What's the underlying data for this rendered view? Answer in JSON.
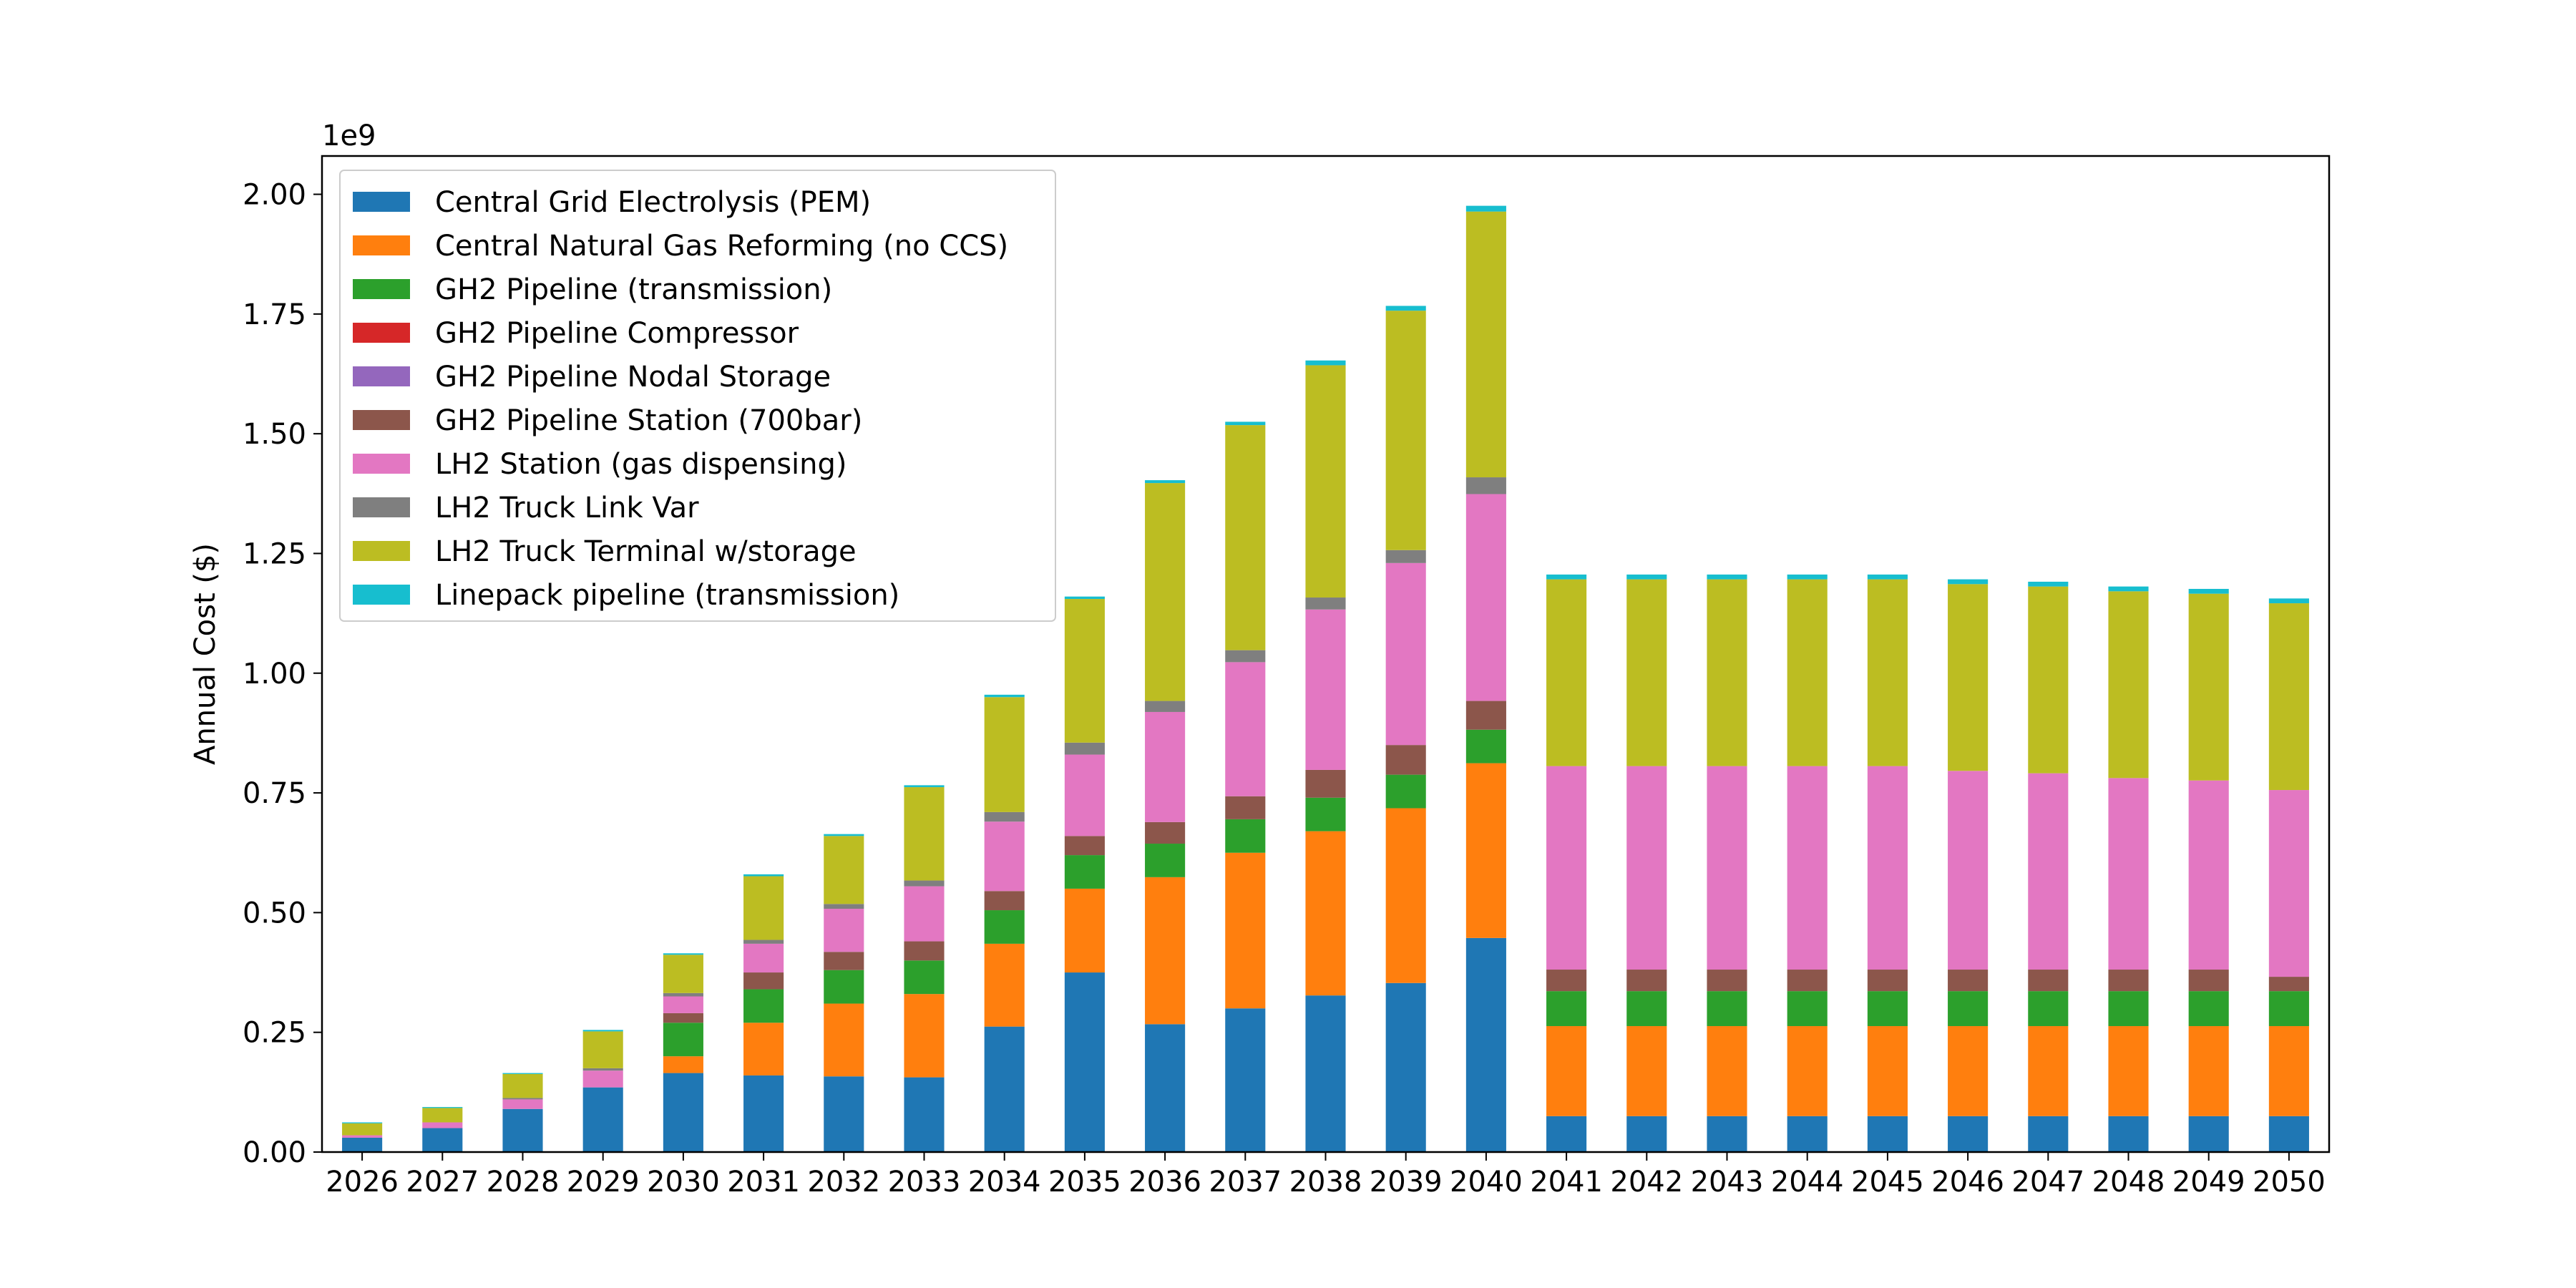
{
  "chart_data": {
    "type": "bar",
    "stacked": true,
    "title": "",
    "xlabel": "",
    "ylabel": "Annual Cost ($)",
    "y_offset_text": "1e9",
    "ylim": [
      0,
      2.08
    ],
    "yticks": [
      "0.00",
      "0.25",
      "0.50",
      "0.75",
      "1.00",
      "1.25",
      "1.50",
      "1.75",
      "2.00"
    ],
    "grid": false,
    "legend_position": "upper-left",
    "categories": [
      "2026",
      "2027",
      "2028",
      "2029",
      "2030",
      "2031",
      "2032",
      "2033",
      "2034",
      "2035",
      "2036",
      "2037",
      "2038",
      "2039",
      "2040",
      "2041",
      "2042",
      "2043",
      "2044",
      "2045",
      "2046",
      "2047",
      "2048",
      "2049",
      "2050"
    ],
    "series": [
      {
        "name": "Central Grid Electrolysis (PEM)",
        "color": "#1f77b4",
        "values": [
          0.03,
          0.05,
          0.09,
          0.135,
          0.165,
          0.16,
          0.158,
          0.156,
          0.262,
          0.375,
          0.267,
          0.3,
          0.327,
          0.353,
          0.447,
          0.075,
          0.075,
          0.075,
          0.075,
          0.075,
          0.075,
          0.075,
          0.075,
          0.075,
          0.075
        ]
      },
      {
        "name": "Central Natural Gas Reforming (no CCS)",
        "color": "#ff7f0e",
        "values": [
          0,
          0,
          0,
          0,
          0.035,
          0.11,
          0.152,
          0.174,
          0.173,
          0.175,
          0.307,
          0.325,
          0.343,
          0.365,
          0.365,
          0.188,
          0.188,
          0.188,
          0.188,
          0.188,
          0.188,
          0.188,
          0.188,
          0.188,
          0.188
        ]
      },
      {
        "name": "GH2 Pipeline (transmission)",
        "color": "#2ca02c",
        "values": [
          0,
          0,
          0,
          0,
          0.07,
          0.07,
          0.07,
          0.07,
          0.07,
          0.07,
          0.07,
          0.07,
          0.07,
          0.07,
          0.07,
          0.073,
          0.073,
          0.073,
          0.073,
          0.073,
          0.073,
          0.073,
          0.073,
          0.073,
          0.073
        ]
      },
      {
        "name": "GH2 Pipeline Compressor",
        "color": "#d62728",
        "values": [
          0,
          0,
          0,
          0,
          0,
          0,
          0,
          0,
          0,
          0,
          0,
          0,
          0,
          0,
          0,
          0,
          0,
          0,
          0,
          0,
          0,
          0,
          0,
          0,
          0
        ]
      },
      {
        "name": "GH2 Pipeline Nodal Storage",
        "color": "#9467bd",
        "values": [
          0,
          0,
          0,
          0,
          0,
          0,
          0,
          0,
          0,
          0,
          0,
          0,
          0,
          0,
          0,
          0,
          0,
          0,
          0,
          0,
          0,
          0,
          0,
          0,
          0
        ]
      },
      {
        "name": "GH2 Pipeline Station (700bar)",
        "color": "#8c564b",
        "values": [
          0,
          0,
          0,
          0,
          0.02,
          0.035,
          0.038,
          0.04,
          0.04,
          0.04,
          0.045,
          0.048,
          0.058,
          0.062,
          0.06,
          0.045,
          0.045,
          0.045,
          0.045,
          0.045,
          0.045,
          0.045,
          0.045,
          0.045,
          0.03
        ]
      },
      {
        "name": "LH2 Station (gas dispensing)",
        "color": "#e377c2",
        "values": [
          0.005,
          0.012,
          0.02,
          0.035,
          0.035,
          0.06,
          0.09,
          0.115,
          0.145,
          0.17,
          0.23,
          0.28,
          0.335,
          0.38,
          0.432,
          0.425,
          0.425,
          0.425,
          0.425,
          0.425,
          0.415,
          0.41,
          0.4,
          0.395,
          0.39
        ]
      },
      {
        "name": "LH2 Truck Link Var",
        "color": "#7f7f7f",
        "values": [
          0,
          0,
          0.003,
          0.005,
          0.007,
          0.008,
          0.01,
          0.012,
          0.02,
          0.025,
          0.023,
          0.025,
          0.025,
          0.027,
          0.035,
          0,
          0,
          0,
          0,
          0,
          0,
          0,
          0,
          0,
          0
        ]
      },
      {
        "name": "LH2 Truck Terminal w/storage",
        "color": "#bcbd22",
        "values": [
          0.025,
          0.03,
          0.05,
          0.077,
          0.08,
          0.133,
          0.142,
          0.195,
          0.24,
          0.3,
          0.455,
          0.47,
          0.485,
          0.5,
          0.555,
          0.39,
          0.39,
          0.39,
          0.39,
          0.39,
          0.39,
          0.39,
          0.39,
          0.39,
          0.39
        ]
      },
      {
        "name": "Linepack pipeline (transmission)",
        "color": "#17becf",
        "values": [
          0.002,
          0.002,
          0.002,
          0.003,
          0.003,
          0.004,
          0.004,
          0.004,
          0.005,
          0.005,
          0.006,
          0.007,
          0.01,
          0.01,
          0.012,
          0.01,
          0.01,
          0.01,
          0.01,
          0.01,
          0.01,
          0.01,
          0.01,
          0.01,
          0.01
        ]
      }
    ]
  }
}
